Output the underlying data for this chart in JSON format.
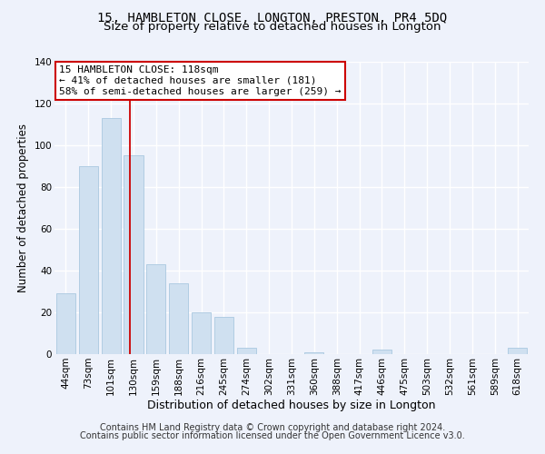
{
  "title1": "15, HAMBLETON CLOSE, LONGTON, PRESTON, PR4 5DQ",
  "title2": "Size of property relative to detached houses in Longton",
  "xlabel": "Distribution of detached houses by size in Longton",
  "ylabel": "Number of detached properties",
  "bar_color": "#cfe0f0",
  "bar_edgecolor": "#aac8e0",
  "categories": [
    "44sqm",
    "73sqm",
    "101sqm",
    "130sqm",
    "159sqm",
    "188sqm",
    "216sqm",
    "245sqm",
    "274sqm",
    "302sqm",
    "331sqm",
    "360sqm",
    "388sqm",
    "417sqm",
    "446sqm",
    "475sqm",
    "503sqm",
    "532sqm",
    "561sqm",
    "589sqm",
    "618sqm"
  ],
  "values": [
    29,
    90,
    113,
    95,
    43,
    34,
    20,
    18,
    3,
    0,
    0,
    1,
    0,
    0,
    2,
    0,
    0,
    0,
    0,
    0,
    3
  ],
  "ylim": [
    0,
    140
  ],
  "yticks": [
    0,
    20,
    40,
    60,
    80,
    100,
    120,
    140
  ],
  "marker_label": "15 HAMBLETON CLOSE: 118sqm",
  "annotation_line1": "← 41% of detached houses are smaller (181)",
  "annotation_line2": "58% of semi-detached houses are larger (259) →",
  "annotation_box_color": "#ffffff",
  "annotation_box_edgecolor": "#cc0000",
  "marker_line_color": "#cc0000",
  "footer1": "Contains HM Land Registry data © Crown copyright and database right 2024.",
  "footer2": "Contains public sector information licensed under the Open Government Licence v3.0.",
  "background_color": "#eef2fb",
  "grid_color": "#ffffff",
  "title1_fontsize": 10,
  "title2_fontsize": 9.5,
  "xlabel_fontsize": 9,
  "ylabel_fontsize": 8.5,
  "tick_fontsize": 7.5,
  "annotation_fontsize": 8,
  "footer_fontsize": 7
}
